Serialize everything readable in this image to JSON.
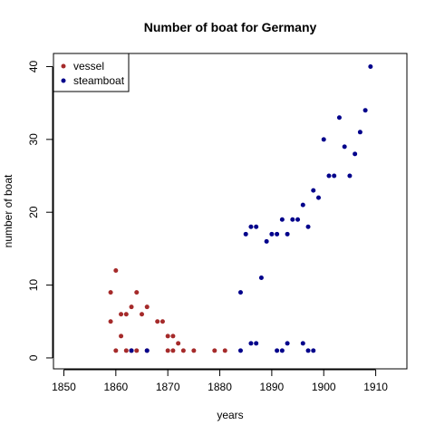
{
  "chart_data": {
    "type": "scatter",
    "title": "Number of boat for Germany",
    "xlabel": "years",
    "ylabel": "number of boat",
    "xlim": [
      1848,
      1916
    ],
    "ylim": [
      -1.5,
      41.8
    ],
    "xticks": [
      1850,
      1860,
      1870,
      1880,
      1890,
      1900,
      1910
    ],
    "yticks": [
      0,
      10,
      20,
      30,
      40
    ],
    "grid": false,
    "legend_position": "top-left",
    "series": [
      {
        "name": "vessel",
        "color": "#a52a2a",
        "points": [
          [
            1859,
            9
          ],
          [
            1859,
            5
          ],
          [
            1860,
            12
          ],
          [
            1860,
            1
          ],
          [
            1861,
            6
          ],
          [
            1861,
            3
          ],
          [
            1862,
            6
          ],
          [
            1862,
            1
          ],
          [
            1863,
            7
          ],
          [
            1863,
            1
          ],
          [
            1864,
            9
          ],
          [
            1864,
            1
          ],
          [
            1865,
            6
          ],
          [
            1866,
            7
          ],
          [
            1866,
            1
          ],
          [
            1868,
            5
          ],
          [
            1869,
            5
          ],
          [
            1870,
            3
          ],
          [
            1870,
            1
          ],
          [
            1871,
            3
          ],
          [
            1871,
            1
          ],
          [
            1872,
            2
          ],
          [
            1873,
            1
          ],
          [
            1875,
            1
          ],
          [
            1879,
            1
          ],
          [
            1881,
            1
          ]
        ]
      },
      {
        "name": "steamboat",
        "color": "#00008b",
        "points": [
          [
            1863,
            1
          ],
          [
            1866,
            1
          ],
          [
            1884,
            9
          ],
          [
            1884,
            1
          ],
          [
            1885,
            17
          ],
          [
            1886,
            18
          ],
          [
            1886,
            2
          ],
          [
            1887,
            18
          ],
          [
            1887,
            2
          ],
          [
            1888,
            11
          ],
          [
            1889,
            16
          ],
          [
            1890,
            17
          ],
          [
            1891,
            17
          ],
          [
            1891,
            1
          ],
          [
            1892,
            19
          ],
          [
            1892,
            1
          ],
          [
            1893,
            17
          ],
          [
            1893,
            2
          ],
          [
            1894,
            19
          ],
          [
            1895,
            19
          ],
          [
            1896,
            21
          ],
          [
            1896,
            2
          ],
          [
            1897,
            18
          ],
          [
            1897,
            1
          ],
          [
            1898,
            23
          ],
          [
            1898,
            1
          ],
          [
            1899,
            22
          ],
          [
            1900,
            30
          ],
          [
            1901,
            25
          ],
          [
            1902,
            25
          ],
          [
            1903,
            33
          ],
          [
            1904,
            29
          ],
          [
            1905,
            25
          ],
          [
            1906,
            28
          ],
          [
            1907,
            31
          ],
          [
            1908,
            34
          ],
          [
            1909,
            40
          ]
        ]
      }
    ]
  }
}
